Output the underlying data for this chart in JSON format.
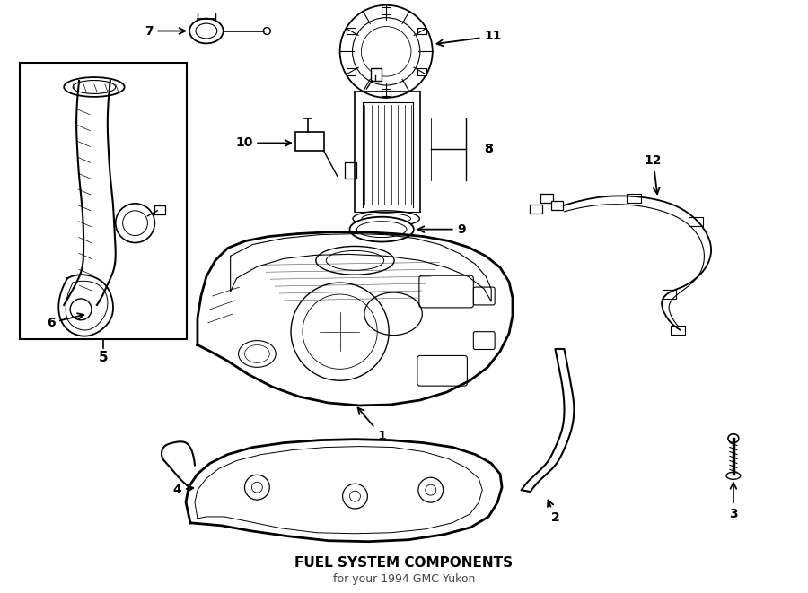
{
  "title": "FUEL SYSTEM COMPONENTS",
  "subtitle": "for your 1994 GMC Yukon",
  "background_color": "#ffffff",
  "line_color": "#000000",
  "fig_width": 9.0,
  "fig_height": 6.61,
  "dpi": 100
}
